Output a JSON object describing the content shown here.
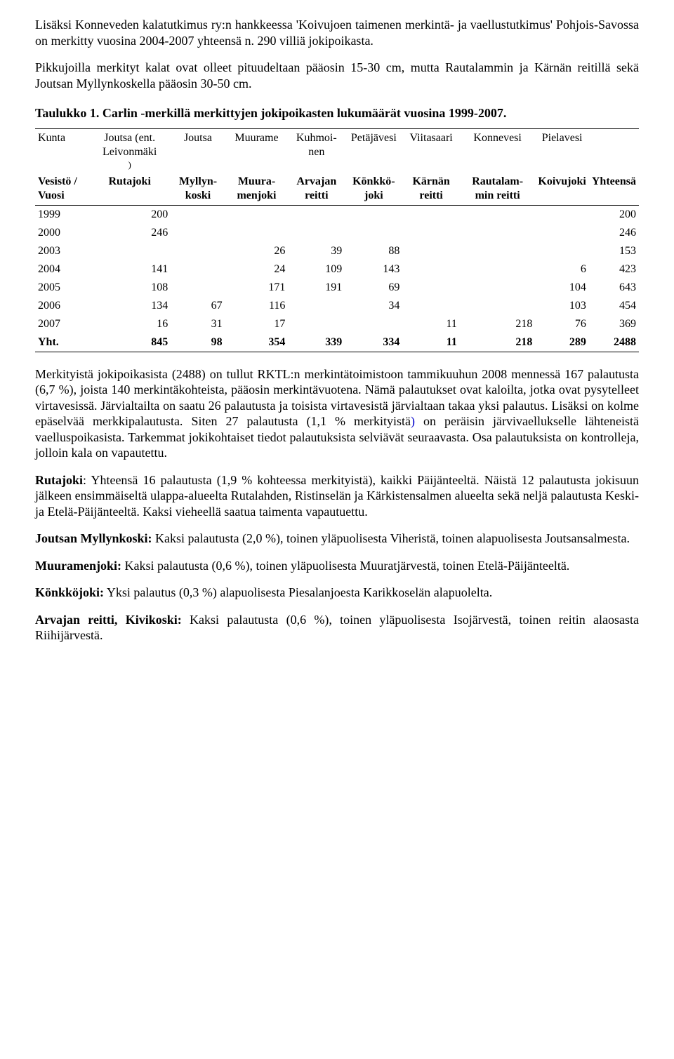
{
  "para_intro1": "Lisäksi Konneveden kalatutkimus ry:n hankkeessa 'Koivujoen taimenen merkintä- ja vaellustutkimus' Pohjois-Savossa on merkitty vuosina 2004-2007 yhteensä n. 290 villiä jokipoikasta.",
  "para_intro2": "Pikkujoilla merkityt kalat ovat olleet pituudeltaan pääosin 15-30 cm, mutta Rautalammin ja Kärnän reitillä sekä Joutsan Myllynkoskella pääosin 30-50 cm.",
  "table_caption": "Taulukko 1. Carlin -merkillä merkittyjen jokipoikasten lukumäärät vuosina 1999-2007.",
  "th_group_label": "Kunta",
  "th_group": [
    "Joutsa (ent. Leivonmäki",
    "Joutsa",
    "Muurame",
    "Kuhmoi-nen",
    "Petäjävesi",
    "Viitasaari",
    "Konnevesi",
    "Pielavesi",
    ""
  ],
  "th_group_subnote": ")",
  "th_cols_label": "Vesistö / Vuosi",
  "th_cols": [
    "Rutajoki",
    "Myllyn-koski",
    "Muura-menjoki",
    "Arvajan reitti",
    "Könkkö-joki",
    "Kärnän reitti",
    "Rautalam-min reitti",
    "Koivujoki",
    "Yhteensä"
  ],
  "rows": [
    {
      "year": "1999",
      "v": [
        "200",
        "",
        "",
        "",
        "",
        "",
        "",
        "",
        "200"
      ]
    },
    {
      "year": "2000",
      "v": [
        "246",
        "",
        "",
        "",
        "",
        "",
        "",
        "",
        "246"
      ]
    },
    {
      "year": "2003",
      "v": [
        "",
        "",
        "26",
        "39",
        "88",
        "",
        "",
        "",
        "153"
      ]
    },
    {
      "year": "2004",
      "v": [
        "141",
        "",
        "24",
        "109",
        "143",
        "",
        "",
        "6",
        "423"
      ]
    },
    {
      "year": "2005",
      "v": [
        "108",
        "",
        "171",
        "191",
        "69",
        "",
        "",
        "104",
        "643"
      ]
    },
    {
      "year": "2006",
      "v": [
        "134",
        "67",
        "116",
        "",
        "34",
        "",
        "",
        "103",
        "454"
      ]
    },
    {
      "year": "2007",
      "v": [
        "16",
        "31",
        "17",
        "",
        "",
        "11",
        "218",
        "76",
        "369"
      ]
    }
  ],
  "total_label": "Yht.",
  "total": [
    "845",
    "98",
    "354",
    "339",
    "334",
    "11",
    "218",
    "289",
    "2488"
  ],
  "para_mid1a": "Merkityistä jokipoikasista (2488) on tullut RKTL:n merkintätoimistoon tammikuuhun 2008 mennessä 167 palautusta (6,7 %), joista 140 merkintäkohteista, pääosin merkintävuotena. Nämä palautukset ovat kaloilta, jotka ovat pysytelleet virtavesissä. Järvialtailta on saatu 26 palautusta ja toisista virtavesistä järvialtaan takaa yksi palautus. Lisäksi on kolme epäselvää merkkipalautusta. Siten 27 palautusta (1,1 % merkityistä",
  "para_mid1b": ")",
  "para_mid1c": " on peräisin järvivaellukselle lähteneistä vaelluspoikasista. Tarkemmat jokikohtaiset tiedot palautuksista selviävät seuraavasta. Osa palautuksista on kontrolleja, jolloin kala on vapautettu.",
  "sec1_title": "Rutajoki",
  "sec1_body": ": Yhteensä 16 palautusta (1,9 % kohteessa merkityistä), kaikki Päijänteeltä. Näistä 12 palautusta jokisuun jälkeen ensimmäiseltä ulappa-alueelta Rutalahden, Ristinselän ja Kärkistensalmen alueelta sekä neljä palautusta Keski- ja Etelä-Päijänteeltä. Kaksi vieheellä saatua taimenta vapautuettu.",
  "sec2_title": "Joutsan Myllynkoski:",
  "sec2_body": " Kaksi palautusta (2,0 %), toinen yläpuolisesta Viheristä, toinen alapuolisesta Joutsansalmesta.",
  "sec3_title": "Muuramenjoki:",
  "sec3_body": " Kaksi palautusta (0,6 %), toinen yläpuolisesta Muuratjärvestä, toinen Etelä-Päijänteeltä.",
  "sec4_title": "Könkköjoki:",
  "sec4_body": " Yksi palautus (0,3 %) alapuolisesta Piesalanjoesta Karikkoselän alapuolelta.",
  "sec5_title": "Arvajan reitti, Kivikoski:",
  "sec5_body": " Kaksi palautusta (0,6 %), toinen yläpuolisesta Isojärvestä, toinen reitin alaosasta Riihijärvestä."
}
